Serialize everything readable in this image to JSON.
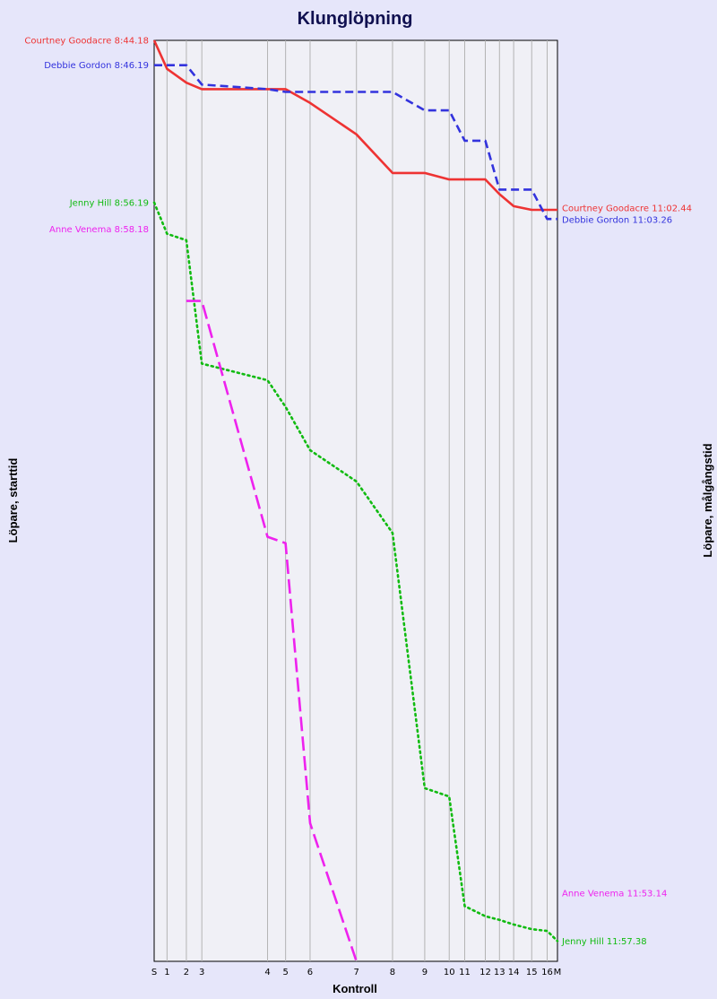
{
  "chart_data": {
    "type": "line",
    "title": "Klunglöpning",
    "xlabel": "Kontroll",
    "ylabel_left": "Löpare, starttid",
    "ylabel_right": "Löpare, målgångstid",
    "controls": [
      "S",
      "1",
      "2",
      "3",
      "4",
      "5",
      "6",
      "7",
      "8",
      "9",
      "10",
      "11",
      "12",
      "13",
      "14",
      "15",
      "16",
      "M"
    ],
    "control_positions": [
      0,
      1,
      2.5,
      3.7,
      8.8,
      10.2,
      12.1,
      15.7,
      18.5,
      21,
      22.9,
      24.1,
      25.7,
      26.8,
      27.9,
      29.3,
      30.5,
      31.3
    ],
    "y_range_minutes": [
      0,
      100
    ],
    "grid": true,
    "series": [
      {
        "name": "Courtney Goodacre",
        "start_label": "Courtney Goodacre 8:44.18",
        "finish_label": "Courtney Goodacre 11:02.44",
        "color": "#ee3333",
        "style": "solid",
        "points": [
          [
            0,
            0
          ],
          [
            1,
            3.1
          ],
          [
            2.5,
            4.6
          ],
          [
            3.7,
            5.3
          ],
          [
            8.8,
            5.3
          ],
          [
            10.2,
            5.3
          ],
          [
            12.1,
            6.8
          ],
          [
            15.7,
            10.2
          ],
          [
            18.5,
            14.4
          ],
          [
            21,
            14.4
          ],
          [
            22.9,
            15.1
          ],
          [
            24.1,
            15.1
          ],
          [
            25.7,
            15.1
          ],
          [
            26.8,
            16.7
          ],
          [
            27.9,
            18
          ],
          [
            29.3,
            18.4
          ],
          [
            30.5,
            18.4
          ],
          [
            31.3,
            18.4
          ]
        ]
      },
      {
        "name": "Debbie Gordon",
        "start_label": "Debbie Gordon 8:46.19",
        "finish_label": "Debbie Gordon 11:03.26",
        "color": "#3333dd",
        "style": "dashed",
        "points": [
          [
            0,
            2.7
          ],
          [
            1,
            2.7
          ],
          [
            2.5,
            2.7
          ],
          [
            3.7,
            4.8
          ],
          [
            8.8,
            5.3
          ],
          [
            10.2,
            5.6
          ],
          [
            12.1,
            5.6
          ],
          [
            15.7,
            5.6
          ],
          [
            18.5,
            5.6
          ],
          [
            21,
            7.6
          ],
          [
            22.9,
            7.6
          ],
          [
            24.1,
            10.9
          ],
          [
            25.7,
            10.9
          ],
          [
            26.8,
            16.2
          ],
          [
            27.9,
            16.2
          ],
          [
            29.3,
            16.2
          ],
          [
            30.5,
            19.4
          ],
          [
            31.3,
            19.4
          ]
        ]
      },
      {
        "name": "Jenny Hill",
        "start_label": "Jenny Hill 8:56.19",
        "finish_label": "Jenny Hill 11:57.38",
        "color": "#11bb11",
        "style": "dotted",
        "points": [
          [
            0,
            17.6
          ],
          [
            1,
            21
          ],
          [
            2.5,
            21.7
          ],
          [
            3.7,
            35.1
          ],
          [
            8.8,
            36.9
          ],
          [
            10.2,
            39.8
          ],
          [
            12.1,
            44.5
          ],
          [
            15.7,
            47.9
          ],
          [
            18.5,
            53.5
          ],
          [
            21,
            81.2
          ],
          [
            22.9,
            82.1
          ],
          [
            24.1,
            94
          ],
          [
            25.7,
            95.1
          ],
          [
            26.8,
            95.5
          ],
          [
            27.9,
            96
          ],
          [
            29.3,
            96.5
          ],
          [
            30.5,
            96.7
          ],
          [
            31.3,
            97.8
          ]
        ]
      },
      {
        "name": "Anne Venema",
        "start_label": "Anne Venema 8:58.18",
        "finish_label": "Anne Venema 11:53.14",
        "color": "#ee22ee",
        "style": "long-dashed",
        "points": [
          [
            2.5,
            28.3
          ],
          [
            3.7,
            28.3
          ],
          [
            8.8,
            53.9
          ],
          [
            10.2,
            54.6
          ],
          [
            12.1,
            85
          ],
          [
            15.7,
            100
          ]
        ]
      }
    ]
  }
}
